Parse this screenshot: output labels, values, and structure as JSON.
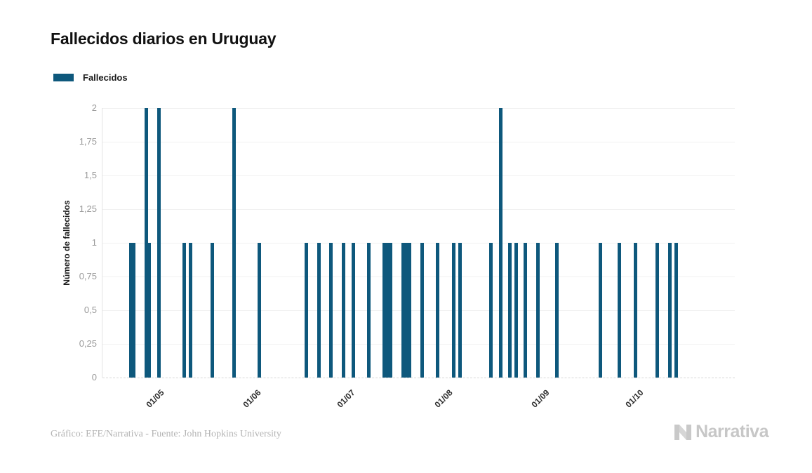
{
  "title": "Fallecidos diarios en Uruguay",
  "legend": {
    "label": "Fallecidos",
    "swatch_color": "#0E587C"
  },
  "footer": {
    "credit": "Gráfico: EFE/Narrativa - Fuente: John Hopkins University"
  },
  "logo": {
    "text": "Narrativa"
  },
  "chart_data": {
    "type": "bar",
    "title": "Fallecidos diarios en Uruguay",
    "xlabel": "",
    "ylabel": "Número de fallecidos",
    "ylim": [
      0,
      2
    ],
    "ytick_step": 0.25,
    "ytick_labels": [
      "0",
      "0,25",
      "0,5",
      "0,75",
      "1",
      "1,25",
      "1,5",
      "1,75",
      "2"
    ],
    "xtick_labels": [
      "01/05",
      "01/06",
      "01/07",
      "01/08",
      "01/09",
      "01/10"
    ],
    "x_domain_days": [
      "14/04",
      "02/11"
    ],
    "grid": "horizontal-only",
    "legend_position": "top-left",
    "series": [
      {
        "name": "Fallecidos",
        "color": "#0E587C",
        "points": [
          {
            "date": "23/04",
            "value": 1
          },
          {
            "date": "24/04",
            "value": 1
          },
          {
            "date": "28/04",
            "value": 2
          },
          {
            "date": "29/04",
            "value": 1
          },
          {
            "date": "02/05",
            "value": 2
          },
          {
            "date": "10/05",
            "value": 1
          },
          {
            "date": "12/05",
            "value": 1
          },
          {
            "date": "19/05",
            "value": 1
          },
          {
            "date": "26/05",
            "value": 2
          },
          {
            "date": "03/06",
            "value": 1
          },
          {
            "date": "18/06",
            "value": 1
          },
          {
            "date": "22/06",
            "value": 1
          },
          {
            "date": "26/06",
            "value": 1
          },
          {
            "date": "30/06",
            "value": 1
          },
          {
            "date": "03/07",
            "value": 1
          },
          {
            "date": "08/07",
            "value": 1
          },
          {
            "date": "13/07",
            "value": 1
          },
          {
            "date": "14/07",
            "value": 1
          },
          {
            "date": "15/07",
            "value": 1
          },
          {
            "date": "19/07",
            "value": 1
          },
          {
            "date": "20/07",
            "value": 1
          },
          {
            "date": "21/07",
            "value": 1
          },
          {
            "date": "25/07",
            "value": 1
          },
          {
            "date": "30/07",
            "value": 1
          },
          {
            "date": "04/08",
            "value": 1
          },
          {
            "date": "06/08",
            "value": 1
          },
          {
            "date": "16/08",
            "value": 1
          },
          {
            "date": "19/08",
            "value": 2
          },
          {
            "date": "22/08",
            "value": 1
          },
          {
            "date": "24/08",
            "value": 1
          },
          {
            "date": "27/08",
            "value": 1
          },
          {
            "date": "31/08",
            "value": 1
          },
          {
            "date": "06/09",
            "value": 1
          },
          {
            "date": "20/09",
            "value": 1
          },
          {
            "date": "26/09",
            "value": 1
          },
          {
            "date": "01/10",
            "value": 1
          },
          {
            "date": "08/10",
            "value": 1
          },
          {
            "date": "12/10",
            "value": 1
          },
          {
            "date": "14/10",
            "value": 1
          }
        ]
      }
    ]
  }
}
